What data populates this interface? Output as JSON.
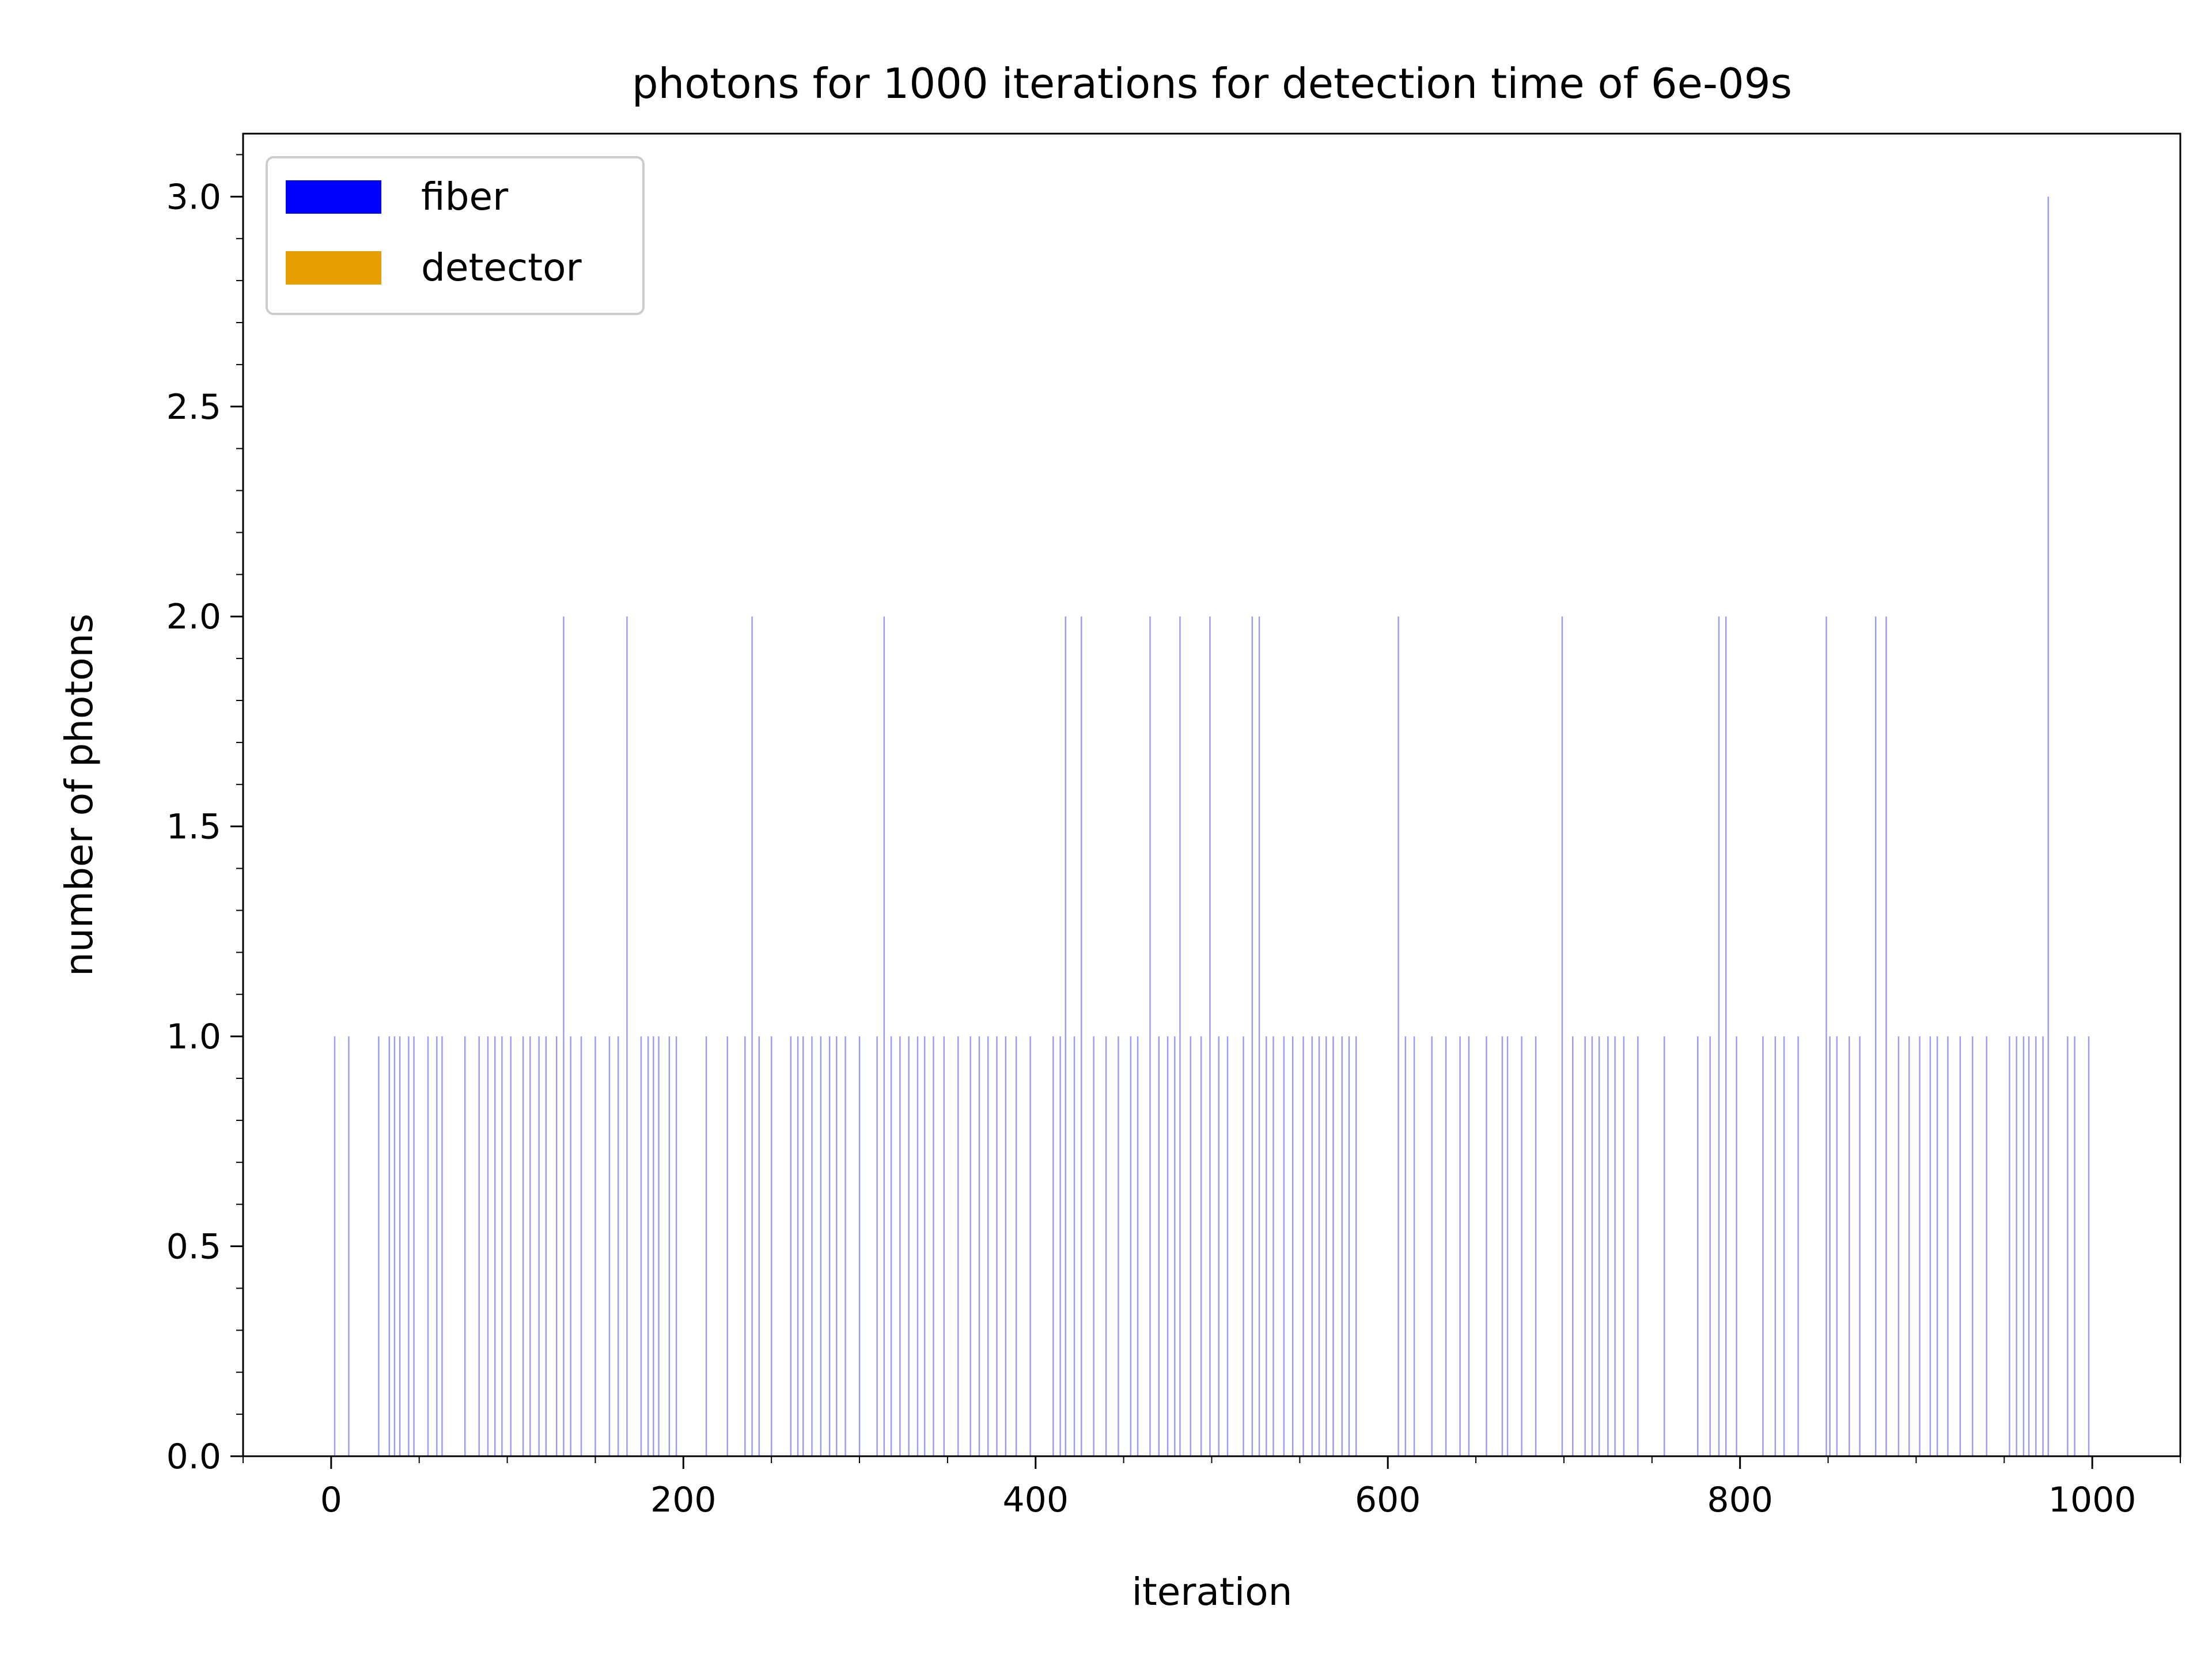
{
  "chart_data": {
    "type": "bar",
    "title": "photons for 1000 iterations for detection time of 6e-09s",
    "xlabel": "iteration",
    "ylabel": "number of photons",
    "xlim": [
      -50,
      1050
    ],
    "ylim": [
      0,
      3.15
    ],
    "xticks": [
      0,
      200,
      400,
      600,
      800,
      1000
    ],
    "xtick_labels": [
      "0",
      "200",
      "400",
      "600",
      "800",
      "1000"
    ],
    "yticks": [
      0.0,
      0.5,
      1.0,
      1.5,
      2.0,
      2.5,
      3.0
    ],
    "ytick_labels": [
      "0.0",
      "0.5",
      "1.0",
      "1.5",
      "2.0",
      "2.5",
      "3.0"
    ],
    "grid": false,
    "legend_position": "top-left",
    "series": [
      {
        "name": "fiber",
        "color": "#0000ff",
        "points": [
          [
            2,
            1
          ],
          [
            10,
            1
          ],
          [
            27,
            1
          ],
          [
            33,
            1
          ],
          [
            36,
            1
          ],
          [
            39,
            1
          ],
          [
            44,
            1
          ],
          [
            47,
            1
          ],
          [
            55,
            1
          ],
          [
            60,
            1
          ],
          [
            63,
            1
          ],
          [
            76,
            1
          ],
          [
            84,
            1
          ],
          [
            89,
            1
          ],
          [
            93,
            1
          ],
          [
            97,
            1
          ],
          [
            102,
            1
          ],
          [
            109,
            1
          ],
          [
            113,
            1
          ],
          [
            118,
            1
          ],
          [
            122,
            1
          ],
          [
            128,
            1
          ],
          [
            132,
            2
          ],
          [
            136,
            1
          ],
          [
            142,
            1
          ],
          [
            150,
            1
          ],
          [
            158,
            1
          ],
          [
            163,
            1
          ],
          [
            168,
            2
          ],
          [
            176,
            1
          ],
          [
            180,
            1
          ],
          [
            183,
            1
          ],
          [
            186,
            1
          ],
          [
            192,
            1
          ],
          [
            196,
            1
          ],
          [
            213,
            1
          ],
          [
            225,
            1
          ],
          [
            235,
            1
          ],
          [
            239,
            2
          ],
          [
            243,
            1
          ],
          [
            250,
            1
          ],
          [
            261,
            1
          ],
          [
            265,
            1
          ],
          [
            268,
            1
          ],
          [
            273,
            1
          ],
          [
            278,
            1
          ],
          [
            283,
            1
          ],
          [
            287,
            1
          ],
          [
            292,
            1
          ],
          [
            300,
            1
          ],
          [
            310,
            1
          ],
          [
            314,
            2
          ],
          [
            318,
            1
          ],
          [
            323,
            1
          ],
          [
            328,
            1
          ],
          [
            333,
            1
          ],
          [
            337,
            1
          ],
          [
            342,
            1
          ],
          [
            348,
            1
          ],
          [
            356,
            1
          ],
          [
            363,
            1
          ],
          [
            368,
            1
          ],
          [
            373,
            1
          ],
          [
            378,
            1
          ],
          [
            383,
            1
          ],
          [
            389,
            1
          ],
          [
            397,
            1
          ],
          [
            410,
            1
          ],
          [
            414,
            1
          ],
          [
            417,
            2
          ],
          [
            422,
            1
          ],
          [
            426,
            2
          ],
          [
            433,
            1
          ],
          [
            440,
            1
          ],
          [
            447,
            1
          ],
          [
            454,
            1
          ],
          [
            458,
            1
          ],
          [
            465,
            2
          ],
          [
            470,
            1
          ],
          [
            475,
            1
          ],
          [
            479,
            1
          ],
          [
            482,
            2
          ],
          [
            488,
            1
          ],
          [
            494,
            1
          ],
          [
            499,
            2
          ],
          [
            504,
            1
          ],
          [
            509,
            1
          ],
          [
            518,
            1
          ],
          [
            523,
            2
          ],
          [
            527,
            2
          ],
          [
            531,
            1
          ],
          [
            535,
            1
          ],
          [
            541,
            1
          ],
          [
            546,
            1
          ],
          [
            552,
            1
          ],
          [
            557,
            1
          ],
          [
            561,
            1
          ],
          [
            565,
            1
          ],
          [
            569,
            1
          ],
          [
            574,
            1
          ],
          [
            578,
            1
          ],
          [
            582,
            1
          ],
          [
            606,
            2
          ],
          [
            610,
            1
          ],
          [
            615,
            1
          ],
          [
            625,
            1
          ],
          [
            633,
            1
          ],
          [
            641,
            1
          ],
          [
            646,
            1
          ],
          [
            656,
            1
          ],
          [
            665,
            1
          ],
          [
            668,
            1
          ],
          [
            676,
            1
          ],
          [
            684,
            1
          ],
          [
            699,
            2
          ],
          [
            705,
            1
          ],
          [
            712,
            1
          ],
          [
            716,
            1
          ],
          [
            720,
            1
          ],
          [
            725,
            1
          ],
          [
            729,
            1
          ],
          [
            734,
            1
          ],
          [
            742,
            1
          ],
          [
            757,
            1
          ],
          [
            776,
            1
          ],
          [
            783,
            1
          ],
          [
            788,
            2
          ],
          [
            792,
            2
          ],
          [
            798,
            1
          ],
          [
            813,
            1
          ],
          [
            820,
            1
          ],
          [
            825,
            1
          ],
          [
            833,
            1
          ],
          [
            849,
            2
          ],
          [
            851,
            1
          ],
          [
            855,
            1
          ],
          [
            862,
            1
          ],
          [
            868,
            1
          ],
          [
            877,
            2
          ],
          [
            883,
            2
          ],
          [
            890,
            1
          ],
          [
            896,
            1
          ],
          [
            902,
            1
          ],
          [
            908,
            1
          ],
          [
            912,
            1
          ],
          [
            918,
            1
          ],
          [
            925,
            1
          ],
          [
            932,
            1
          ],
          [
            940,
            1
          ],
          [
            953,
            1
          ],
          [
            957,
            1
          ],
          [
            961,
            1
          ],
          [
            964,
            1
          ],
          [
            968,
            1
          ],
          [
            972,
            1
          ],
          [
            975,
            3
          ],
          [
            986,
            1
          ],
          [
            990,
            1
          ],
          [
            998,
            1
          ]
        ]
      },
      {
        "name": "detector",
        "color": "#e69f00",
        "points": []
      }
    ]
  }
}
